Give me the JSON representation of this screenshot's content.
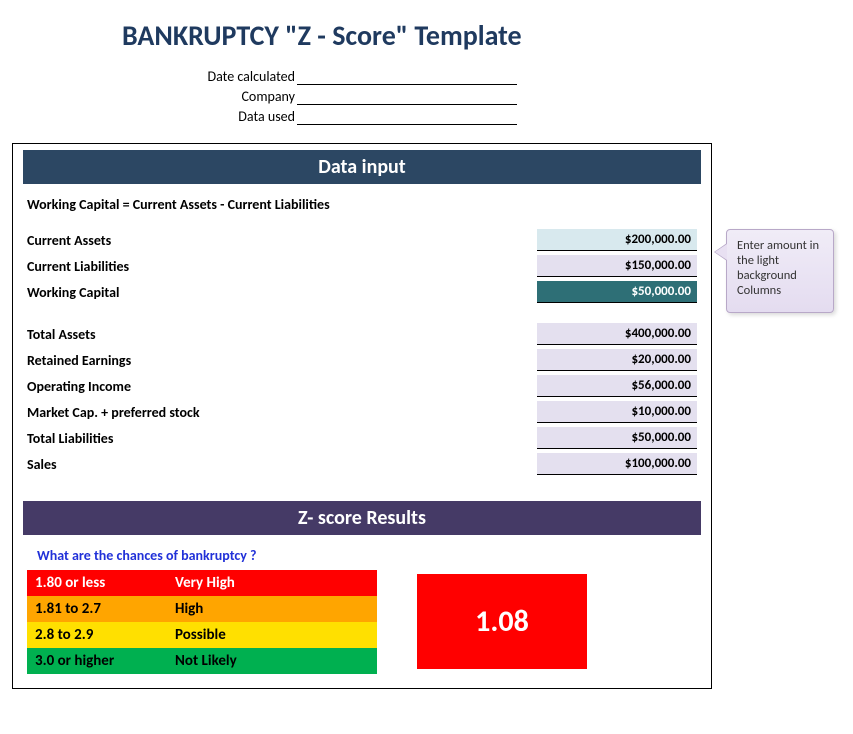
{
  "title": "BANKRUPTCY \"Z - Score\" Template",
  "meta": {
    "date_label": "Date calculated",
    "company_label": "Company",
    "data_label": "Data used",
    "date_value": "",
    "company_value": "",
    "data_value": ""
  },
  "sections": {
    "data_input_header": "Data input",
    "results_header": "Z- score Results"
  },
  "formula_note": "Working Capital  = Current Assets - Current Liabilities",
  "inputs": {
    "current_assets": {
      "label": "Current Assets",
      "value": "$200,000.00",
      "style": "light"
    },
    "current_liabilities": {
      "label": "Current Liabilities",
      "value": "$150,000.00",
      "style": "lav"
    },
    "working_capital": {
      "label": "Working Capital",
      "value": "$50,000.00",
      "style": "dark"
    },
    "total_assets": {
      "label": "Total Assets",
      "value": "$400,000.00",
      "style": "lav"
    },
    "retained_earnings": {
      "label": "Retained Earnings",
      "value": "$20,000.00",
      "style": "lav"
    },
    "operating_income": {
      "label": "Operating Income",
      "value": "$56,000.00",
      "style": "lav"
    },
    "market_cap": {
      "label": "Market Cap. + preferred stock",
      "value": "$10,000.00",
      "style": "lav"
    },
    "total_liabilities": {
      "label": "Total Liabilities",
      "value": "$50,000.00",
      "style": "lav"
    },
    "sales": {
      "label": "Sales",
      "value": "$100,000.00",
      "style": "lav"
    }
  },
  "results": {
    "question": "What are the chances of bankruptcy ?",
    "legend": [
      {
        "range": "1.80 or less",
        "label": "Very High",
        "class": "lr-red"
      },
      {
        "range": "1.81 to  2.7",
        "label": "High",
        "class": "lr-orange"
      },
      {
        "range": "2.8 to 2.9",
        "label": "Possible",
        "class": "lr-yellow"
      },
      {
        "range": "3.0 or higher",
        "label": "Not Likely",
        "class": "lr-green"
      }
    ],
    "score": "1.08",
    "score_bg": "#ff0000"
  },
  "callout": "Enter amount in the light background Columns",
  "colors": {
    "header_datainput": "#2c4763",
    "header_results": "#453a66",
    "val_light": "#d8e9ee",
    "val_lav": "#e4e0ef",
    "val_dark": "#2e6f76",
    "legend_red": "#ff0000",
    "legend_orange": "#ffa500",
    "legend_yellow": "#ffe000",
    "legend_green": "#00b050"
  }
}
